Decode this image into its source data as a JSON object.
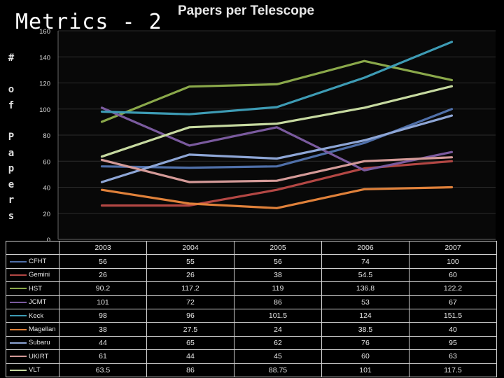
{
  "slide_title": "Metrics - 2",
  "ylabel_letters": [
    "#",
    "",
    "o",
    "f",
    "",
    "P",
    "a",
    "p",
    "e",
    "r",
    "s"
  ],
  "chart_data": {
    "type": "line",
    "title": "Papers per Telescope",
    "xlabel": "",
    "ylabel": "# of Papers",
    "categories": [
      "2003",
      "2004",
      "2005",
      "2006",
      "2007"
    ],
    "ylim": [
      0,
      160
    ],
    "yticks": [
      "0",
      "20",
      "40",
      "60",
      "80",
      "100",
      "120",
      "140",
      "160"
    ],
    "grid": true,
    "legend": "table-below",
    "series": [
      {
        "name": "CFHT",
        "color": "#4f6fa8",
        "values": [
          56,
          55,
          56,
          74,
          100
        ],
        "labels": [
          "56",
          "55",
          "56",
          "74",
          "100"
        ]
      },
      {
        "name": "Gemini",
        "color": "#b34744",
        "values": [
          26,
          26,
          38,
          54.5,
          60
        ],
        "labels": [
          "26",
          "26",
          "38",
          "54.5",
          "60"
        ]
      },
      {
        "name": "HST",
        "color": "#8aa84a",
        "values": [
          90.2,
          117.2,
          119,
          136.8,
          122.2
        ],
        "labels": [
          "90.2",
          "117.2",
          "119",
          "136.8",
          "122.2"
        ]
      },
      {
        "name": "JCMT",
        "color": "#7a5a9e",
        "values": [
          101,
          72,
          86,
          53,
          67
        ],
        "labels": [
          "101",
          "72",
          "86",
          "53",
          "67"
        ]
      },
      {
        "name": "Keck",
        "color": "#3d9bb4",
        "values": [
          98,
          96,
          101.5,
          124,
          151.5
        ],
        "labels": [
          "98",
          "96",
          "101.5",
          "124",
          "151.5"
        ]
      },
      {
        "name": "Magellan",
        "color": "#e0813a",
        "values": [
          38,
          27.5,
          24,
          38.5,
          40
        ],
        "labels": [
          "38",
          "27.5",
          "24",
          "38.5",
          "40"
        ]
      },
      {
        "name": "Subaru",
        "color": "#8ea6d6",
        "values": [
          44,
          65,
          62,
          76,
          95
        ],
        "labels": [
          "44",
          "65",
          "62",
          "76",
          "95"
        ]
      },
      {
        "name": "UKIRT",
        "color": "#d49a98",
        "values": [
          61,
          44,
          45,
          60,
          63
        ],
        "labels": [
          "61",
          "44",
          "45",
          "60",
          "63"
        ]
      },
      {
        "name": "VLT",
        "color": "#c6d9a0",
        "values": [
          63.5,
          86,
          88.75,
          101,
          117.5
        ],
        "labels": [
          "63.5",
          "86",
          "88.75",
          "101",
          "117.5"
        ]
      }
    ]
  }
}
